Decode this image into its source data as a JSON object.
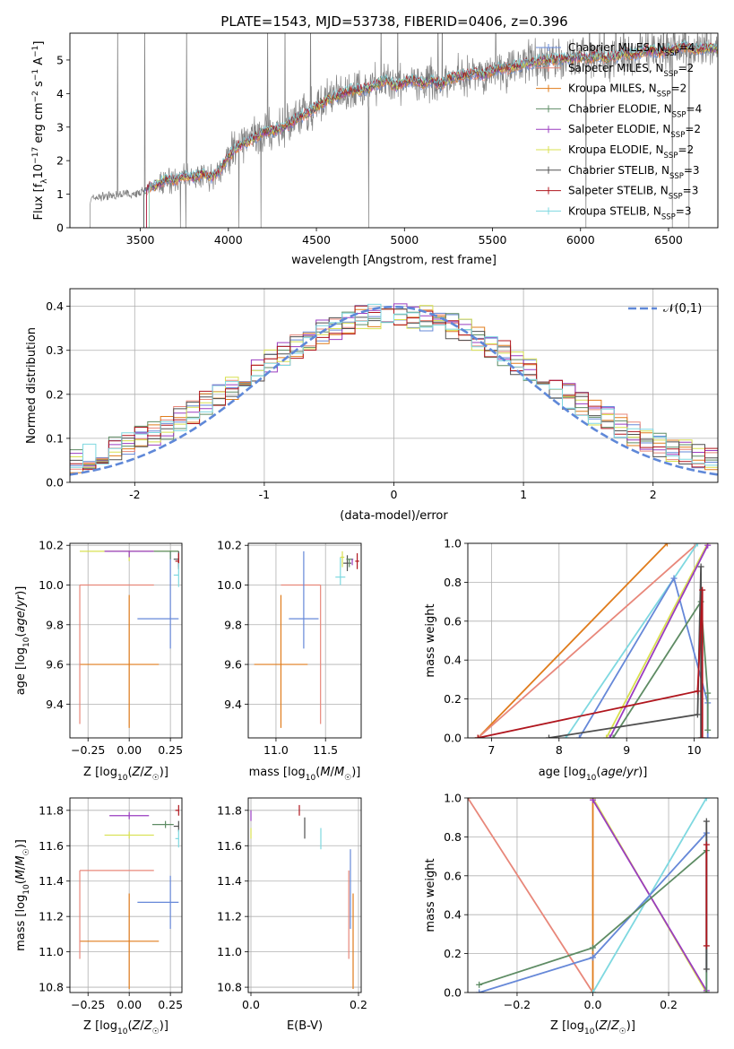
{
  "figure_title": "PLATE=1543, MJD=53738, FIBERID=0406, z=0.396",
  "legend": [
    {
      "label": "Chabrier MILES, N",
      "sub": "SSP",
      "suffix": "=4",
      "color": "#6688d8"
    },
    {
      "label": "Salpeter MILES, N",
      "sub": "SSP",
      "suffix": "=2",
      "color": "#e8877a"
    },
    {
      "label": "Kroupa MILES, N",
      "sub": "SSP",
      "suffix": "=2",
      "color": "#e07c1c"
    },
    {
      "label": "Chabrier ELODIE, N",
      "sub": "SSP",
      "suffix": "=4",
      "color": "#5e8c64"
    },
    {
      "label": "Salpeter ELODIE, N",
      "sub": "SSP",
      "suffix": "=2",
      "color": "#9a3cc0"
    },
    {
      "label": "Kroupa ELODIE, N",
      "sub": "SSP",
      "suffix": "=2",
      "color": "#d8e050"
    },
    {
      "label": "Chabrier STELIB, N",
      "sub": "SSP",
      "suffix": "=3",
      "color": "#505050"
    },
    {
      "label": "Salpeter STELIB, N",
      "sub": "SSP",
      "suffix": "=3",
      "color": "#b0161e"
    },
    {
      "label": "Kroupa STELIB, N",
      "sub": "SSP",
      "suffix": "=3",
      "color": "#7ed8e0"
    }
  ],
  "chart_data": [
    {
      "id": "spectrum",
      "type": "line",
      "xlabel": "wavelength [Angstrom, rest frame]",
      "ylabel": "Flux [f_λ10^-17 erg cm^-2 s^-1 A^-1]",
      "xlim": [
        3100,
        6780
      ],
      "ylim": [
        0,
        5.8
      ],
      "xticks": [
        3500,
        4000,
        4500,
        5000,
        5500,
        6000,
        6500
      ],
      "yticks": [
        0,
        1,
        2,
        3,
        4,
        5
      ],
      "data_series": {
        "name": "",
        "color": "#808080",
        "x": [
          3215,
          3250,
          3300,
          3350,
          3400,
          3450,
          3500,
          3550,
          3600,
          3650,
          3700,
          3750,
          3800,
          3850,
          3900,
          3950,
          4000,
          4050,
          4100,
          4150,
          4200,
          4250,
          4300,
          4350,
          4400,
          4450,
          4500,
          4550,
          4600,
          4650,
          4700,
          4750,
          4800,
          4850,
          4900,
          4950,
          5000,
          5050,
          5100,
          5150,
          5200,
          5250,
          5300,
          5350,
          5400,
          5450,
          5500,
          5550,
          5600,
          5650,
          5700,
          5750,
          5800,
          5850,
          5900,
          5950,
          6000,
          6050,
          6100,
          6150,
          6200,
          6250,
          6300,
          6350,
          6400,
          6450,
          6500,
          6550,
          6600,
          6650,
          6700
        ],
        "y": [
          0.85,
          0.9,
          0.95,
          0.95,
          1.0,
          1.0,
          1.05,
          1.2,
          1.3,
          1.45,
          1.4,
          1.55,
          1.5,
          1.6,
          1.5,
          1.7,
          2.1,
          2.4,
          2.55,
          2.7,
          2.85,
          2.9,
          2.95,
          3.1,
          3.3,
          3.4,
          3.6,
          3.75,
          3.9,
          4.0,
          4.1,
          4.1,
          4.15,
          4.3,
          4.4,
          4.2,
          4.35,
          4.4,
          4.3,
          4.4,
          4.25,
          4.45,
          4.5,
          4.55,
          4.6,
          4.55,
          4.7,
          4.75,
          4.75,
          4.85,
          4.9,
          4.95,
          5.0,
          5.0,
          5.05,
          5.05,
          5.1,
          5.05,
          5.15,
          5.05,
          5.1,
          5.2,
          5.15,
          5.25,
          5.3,
          5.2,
          5.3,
          5.35,
          5.4,
          5.3,
          5.35
        ]
      },
      "model_start_x": 3520
    },
    {
      "id": "residuals",
      "type": "histogram",
      "xlabel": "(data-model)/error",
      "ylabel": "Normed distribution",
      "xlim": [
        -2.5,
        2.5
      ],
      "ylim": [
        0,
        0.44
      ],
      "xticks": [
        -2,
        -1,
        0,
        1,
        2
      ],
      "yticks": [
        0.0,
        0.1,
        0.2,
        0.3,
        0.4
      ],
      "bin_width": 0.1,
      "reference": {
        "name": "𝒩(0,1)",
        "mean": 0,
        "sigma": 1,
        "style": "dashed",
        "color": "#5f88d8"
      }
    },
    {
      "id": "age_vs_Z",
      "type": "errorbar",
      "xlabel": "Z [log₁₀(Z/Z☉)]",
      "ylabel": "age  [log₁₀(age/yr)]",
      "xlim": [
        -0.36,
        0.32
      ],
      "ylim": [
        9.23,
        10.21
      ],
      "xticks": [
        -0.25,
        0.0,
        0.25
      ],
      "xtick_labels": [
        "−0.25",
        "0.00",
        "0.25"
      ],
      "yticks": [
        9.4,
        9.6,
        9.8,
        10.0,
        10.2
      ],
      "points": [
        {
          "c": 2,
          "x": 0.0,
          "y": 9.6,
          "xerr": [
            0.3,
            0.18
          ],
          "yerr": [
            0.32,
            0.35
          ]
        },
        {
          "c": 1,
          "x": -0.3,
          "y": 10.0,
          "xerr": [
            0,
            0.45
          ],
          "yerr": [
            0.7,
            0.0
          ]
        },
        {
          "c": 0,
          "x": 0.25,
          "y": 9.83,
          "xerr": [
            0.2,
            0.05
          ],
          "yerr": [
            0.15,
            0.34
          ]
        },
        {
          "c": 5,
          "x": 0.0,
          "y": 10.17,
          "xerr": [
            0.3,
            0.3
          ],
          "yerr": [
            0.05,
            0.0
          ]
        },
        {
          "c": 4,
          "x": 0.0,
          "y": 10.17,
          "xerr": [
            0.15,
            0.15
          ],
          "yerr": [
            0.03,
            0.0
          ]
        },
        {
          "c": 3,
          "x": 0.25,
          "y": 10.17,
          "xerr": [
            0.1,
            0.05
          ],
          "yerr": [
            0.04,
            0.0
          ]
        },
        {
          "c": 6,
          "x": 0.3,
          "y": 10.13,
          "xerr": [
            0.03,
            0.0
          ],
          "yerr": [
            0.04,
            0.04
          ]
        },
        {
          "c": 7,
          "x": 0.3,
          "y": 10.12,
          "xerr": [
            0.02,
            0.0
          ],
          "yerr": [
            0.04,
            0.04
          ]
        },
        {
          "c": 8,
          "x": 0.3,
          "y": 10.05,
          "xerr": [
            0.03,
            0.0
          ],
          "yerr": [
            0.06,
            0.06
          ]
        }
      ]
    },
    {
      "id": "age_vs_mass",
      "type": "errorbar",
      "xlabel": "mass [log₁₀(M/M☉)]",
      "ylabel": "",
      "xlim": [
        10.72,
        11.86
      ],
      "ylim": [
        9.23,
        10.21
      ],
      "xticks": [
        11.0,
        11.5
      ],
      "xtick_labels": [
        "11.0",
        "11.5"
      ],
      "yticks": [
        9.4,
        9.6,
        9.8,
        10.0,
        10.2
      ],
      "points": [
        {
          "c": 2,
          "x": 11.05,
          "y": 9.6,
          "xerr": [
            0.27,
            0.27
          ],
          "yerr": [
            0.32,
            0.35
          ]
        },
        {
          "c": 1,
          "x": 11.45,
          "y": 10.0,
          "xerr": [
            0.4,
            0.0
          ],
          "yerr": [
            0.7,
            0.0
          ]
        },
        {
          "c": 0,
          "x": 11.28,
          "y": 9.83,
          "xerr": [
            0.15,
            0.15
          ],
          "yerr": [
            0.15,
            0.34
          ]
        },
        {
          "c": 8,
          "x": 11.65,
          "y": 10.04,
          "xerr": [
            0.05,
            0.05
          ],
          "yerr": [
            0.04,
            0.1
          ]
        },
        {
          "c": 5,
          "x": 11.67,
          "y": 10.14,
          "xerr": [
            0.02,
            0.02
          ],
          "yerr": [
            0.05,
            0.03
          ]
        },
        {
          "c": 6,
          "x": 11.72,
          "y": 10.11,
          "xerr": [
            0.04,
            0.04
          ],
          "yerr": [
            0.04,
            0.04
          ]
        },
        {
          "c": 4,
          "x": 11.77,
          "y": 10.13,
          "xerr": [
            0.01,
            0.01
          ],
          "yerr": [
            0.03,
            0.0
          ]
        },
        {
          "c": 7,
          "x": 11.82,
          "y": 10.12,
          "xerr": [
            0.02,
            0.02
          ],
          "yerr": [
            0.04,
            0.04
          ]
        },
        {
          "c": 3,
          "x": 11.74,
          "y": 10.13,
          "xerr": [
            0.03,
            0.03
          ],
          "yerr": [
            0.04,
            0.0
          ]
        }
      ]
    },
    {
      "id": "weight_vs_age",
      "type": "line",
      "xlabel": "age  [log₁₀(age/yr)]",
      "ylabel": "mass weight",
      "xlim": [
        6.65,
        10.35
      ],
      "ylim": [
        0,
        1.0
      ],
      "xticks": [
        7,
        8,
        9,
        10
      ],
      "yticks": [
        0.0,
        0.2,
        0.4,
        0.6,
        0.8,
        1.0
      ],
      "series": [
        {
          "c": 2,
          "x": [
            6.8,
            9.6
          ],
          "y": [
            0.0,
            1.0
          ]
        },
        {
          "c": 1,
          "x": [
            6.8,
            10.05
          ],
          "y": [
            0.0,
            1.0
          ]
        },
        {
          "c": 8,
          "x": [
            8.1,
            10.05
          ],
          "y": [
            0.0,
            1.0
          ]
        },
        {
          "c": 0,
          "x": [
            8.3,
            9.7,
            10.2,
            10.2
          ],
          "y": [
            0.0,
            0.82,
            0.18,
            0.0
          ]
        },
        {
          "c": 5,
          "x": [
            8.7,
            10.2
          ],
          "y": [
            0.0,
            1.0
          ]
        },
        {
          "c": 4,
          "x": [
            8.75,
            10.2
          ],
          "y": [
            0.0,
            0.99
          ]
        },
        {
          "c": 3,
          "x": [
            8.8,
            10.1,
            10.2,
            10.2
          ],
          "y": [
            0.0,
            0.7,
            0.23,
            0.04
          ]
        },
        {
          "c": 6,
          "x": [
            7.85,
            10.05,
            10.1,
            10.1
          ],
          "y": [
            0.0,
            0.12,
            0.88,
            0.0
          ]
        },
        {
          "c": 7,
          "x": [
            6.8,
            10.05,
            10.12,
            10.12
          ],
          "y": [
            0.0,
            0.24,
            0.76,
            0.0
          ]
        }
      ]
    },
    {
      "id": "mass_vs_Z",
      "type": "errorbar",
      "xlabel": "Z [log₁₀(Z/Z☉)]",
      "ylabel": "mass [log₁₀(M/M☉)]",
      "xlim": [
        -0.36,
        0.32
      ],
      "ylim": [
        10.77,
        11.87
      ],
      "xticks": [
        -0.25,
        0.0,
        0.25
      ],
      "xtick_labels": [
        "−0.25",
        "0.00",
        "0.25"
      ],
      "yticks": [
        10.8,
        11.0,
        11.2,
        11.4,
        11.6,
        11.8
      ],
      "points": [
        {
          "c": 2,
          "x": 0.0,
          "y": 11.06,
          "xerr": [
            0.3,
            0.18
          ],
          "yerr": [
            0.27,
            0.27
          ]
        },
        {
          "c": 1,
          "x": -0.3,
          "y": 11.46,
          "xerr": [
            0,
            0.45
          ],
          "yerr": [
            0.5,
            0.0
          ]
        },
        {
          "c": 0,
          "x": 0.25,
          "y": 11.28,
          "xerr": [
            0.2,
            0.05
          ],
          "yerr": [
            0.15,
            0.15
          ]
        },
        {
          "c": 5,
          "x": 0.0,
          "y": 11.66,
          "xerr": [
            0.15,
            0.15
          ],
          "yerr": [
            0.02,
            0.02
          ]
        },
        {
          "c": 4,
          "x": 0.0,
          "y": 11.77,
          "xerr": [
            0.12,
            0.12
          ],
          "yerr": [
            0.02,
            0.02
          ]
        },
        {
          "c": 3,
          "x": 0.22,
          "y": 11.72,
          "xerr": [
            0.08,
            0.05
          ],
          "yerr": [
            0.02,
            0.02
          ]
        },
        {
          "c": 6,
          "x": 0.3,
          "y": 11.71,
          "xerr": [
            0.03,
            0.0
          ],
          "yerr": [
            0.03,
            0.03
          ]
        },
        {
          "c": 7,
          "x": 0.3,
          "y": 11.8,
          "xerr": [
            0.02,
            0.0
          ],
          "yerr": [
            0.03,
            0.03
          ]
        },
        {
          "c": 8,
          "x": 0.3,
          "y": 11.64,
          "xerr": [
            0.02,
            0.0
          ],
          "yerr": [
            0.05,
            0.05
          ]
        }
      ]
    },
    {
      "id": "mass_vs_ebv",
      "type": "errorbar",
      "xlabel": "E(B-V)",
      "ylabel": "",
      "xlim": [
        -0.005,
        0.205
      ],
      "ylim": [
        10.77,
        11.87
      ],
      "xticks": [
        0.0,
        0.2
      ],
      "xtick_labels": [
        "0.0",
        "0.2"
      ],
      "yticks": [
        10.8,
        11.0,
        11.2,
        11.4,
        11.6,
        11.8
      ],
      "points": [
        {
          "c": 4,
          "x": 0.0,
          "y": 11.77,
          "xerr": [
            0,
            0
          ],
          "yerr": [
            0.03,
            0.03
          ]
        },
        {
          "c": 5,
          "x": 0.0,
          "y": 11.67,
          "xerr": [
            0,
            0
          ],
          "yerr": [
            0.03,
            0.03
          ]
        },
        {
          "c": 7,
          "x": 0.09,
          "y": 11.8,
          "xerr": [
            0,
            0
          ],
          "yerr": [
            0.03,
            0.03
          ]
        },
        {
          "c": 6,
          "x": 0.1,
          "y": 11.7,
          "xerr": [
            0,
            0
          ],
          "yerr": [
            0.06,
            0.06
          ]
        },
        {
          "c": 8,
          "x": 0.13,
          "y": 11.64,
          "xerr": [
            0,
            0
          ],
          "yerr": [
            0.06,
            0.06
          ]
        },
        {
          "c": 0,
          "x": 0.185,
          "y": 11.28,
          "xerr": [
            0,
            0
          ],
          "yerr": [
            0.15,
            0.3
          ]
        },
        {
          "c": 1,
          "x": 0.182,
          "y": 11.46,
          "xerr": [
            0,
            0
          ],
          "yerr": [
            0.5,
            0.0
          ]
        },
        {
          "c": 2,
          "x": 0.19,
          "y": 11.06,
          "xerr": [
            0,
            0
          ],
          "yerr": [
            0.27,
            0.27
          ]
        }
      ]
    },
    {
      "id": "weight_vs_Z",
      "type": "line",
      "xlabel": "Z [log₁₀(Z/Z☉)]",
      "ylabel": "mass weight",
      "xlim": [
        -0.33,
        0.33
      ],
      "ylim": [
        0,
        1.0
      ],
      "xticks": [
        -0.2,
        0.0,
        0.2
      ],
      "xtick_labels": [
        "−0.2",
        "0.0",
        "0.2"
      ],
      "yticks": [
        0.0,
        0.2,
        0.4,
        0.6,
        0.8,
        1.0
      ],
      "series": [
        {
          "c": 1,
          "x": [
            -0.33,
            0.0
          ],
          "y": [
            1.0,
            0.0
          ]
        },
        {
          "c": 2,
          "x": [
            0.0,
            0.0
          ],
          "y": [
            0.0,
            1.0
          ]
        },
        {
          "c": 5,
          "x": [
            0.0,
            0.3
          ],
          "y": [
            1.0,
            0.0
          ]
        },
        {
          "c": 4,
          "x": [
            0.0,
            0.3
          ],
          "y": [
            0.99,
            0.01
          ]
        },
        {
          "c": 8,
          "x": [
            0.0,
            0.3
          ],
          "y": [
            0.0,
            1.0
          ]
        },
        {
          "c": 0,
          "x": [
            -0.3,
            0.0,
            0.3,
            0.3
          ],
          "y": [
            0.0,
            0.18,
            0.82,
            0.0
          ]
        },
        {
          "c": 3,
          "x": [
            -0.3,
            0.0,
            0.3,
            0.3
          ],
          "y": [
            0.04,
            0.23,
            0.73,
            0.0
          ]
        },
        {
          "c": 6,
          "x": [
            0.3,
            0.3
          ],
          "y": [
            0.12,
            0.88
          ]
        },
        {
          "c": 7,
          "x": [
            0.3,
            0.3
          ],
          "y": [
            0.24,
            0.76
          ]
        }
      ]
    }
  ]
}
